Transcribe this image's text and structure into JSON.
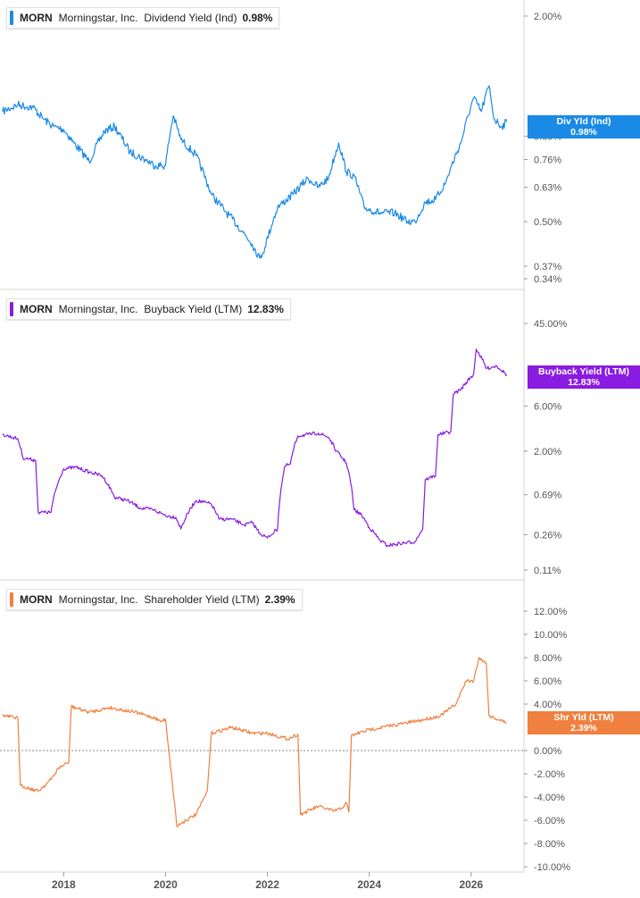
{
  "colors": {
    "dividend": "#1a8ae6",
    "buyback": "#8a1be0",
    "shareholder": "#f08040",
    "axis": "#d4d4d4",
    "text": "#555555"
  },
  "panels": [
    {
      "ticker": "MORN",
      "company": "Morningstar, Inc.",
      "metric": "Dividend Yield (Ind)",
      "value": "0.98%",
      "badge_label": "Div Yld (Ind)",
      "badge_value": "0.98%",
      "y_ticks": [
        "2.00%",
        "0.89%",
        "0.76%",
        "0.63%",
        "0.50%",
        "0.37%",
        "0.34%"
      ],
      "color": "#1a8ae6"
    },
    {
      "ticker": "MORN",
      "company": "Morningstar, Inc.",
      "metric": "Buyback Yield (LTM)",
      "value": "12.83%",
      "badge_label": "Buyback Yield (LTM)",
      "badge_value": "12.83%",
      "y_ticks": [
        "45.00%",
        "6.00%",
        "2.00%",
        "0.69%",
        "0.26%",
        "0.11%"
      ],
      "color": "#8a1be0"
    },
    {
      "ticker": "MORN",
      "company": "Morningstar, Inc.",
      "metric": "Shareholder Yield (LTM)",
      "value": "2.39%",
      "badge_label": "Shr Yld (LTM)",
      "badge_value": "2.39%",
      "y_ticks": [
        "12.00%",
        "10.00%",
        "8.00%",
        "6.00%",
        "4.00%",
        "0.00%",
        "-2.00%",
        "-4.00%",
        "-6.00%",
        "-8.00%",
        "-10.00%"
      ],
      "color": "#f08040"
    }
  ],
  "x_ticks": [
    "2018",
    "2020",
    "2022",
    "2024",
    "2026"
  ],
  "chart_data": [
    {
      "type": "line",
      "title": "MORN Morningstar, Inc. Dividend Yield (Ind) 0.98%",
      "y_scale": "log",
      "ylim": [
        0.34,
        2.0
      ],
      "series": [
        {
          "name": "Dividend Yield (Ind)",
          "x": [
            2016.8,
            2017.1,
            2017.4,
            2017.6,
            2017.8,
            2018.0,
            2018.2,
            2018.5,
            2018.8,
            2019.0,
            2019.3,
            2019.6,
            2019.8,
            2020.0,
            2020.15,
            2020.3,
            2020.6,
            2020.9,
            2021.2,
            2021.5,
            2021.7,
            2021.85,
            2021.95,
            2022.2,
            2022.5,
            2022.8,
            2023.0,
            2023.2,
            2023.4,
            2023.55,
            2023.7,
            2023.9,
            2024.2,
            2024.5,
            2024.75,
            2024.9,
            2025.1,
            2025.3,
            2025.5,
            2025.8,
            2026.05,
            2026.2,
            2026.35,
            2026.45,
            2026.6,
            2026.7
          ],
          "values": [
            1.05,
            1.1,
            1.08,
            1.0,
            0.95,
            0.93,
            0.85,
            0.75,
            0.92,
            0.95,
            0.8,
            0.76,
            0.73,
            0.73,
            1.02,
            0.87,
            0.78,
            0.6,
            0.53,
            0.47,
            0.43,
            0.39,
            0.42,
            0.55,
            0.6,
            0.67,
            0.63,
            0.67,
            0.85,
            0.7,
            0.68,
            0.55,
            0.53,
            0.53,
            0.5,
            0.5,
            0.57,
            0.58,
            0.65,
            0.85,
            1.15,
            1.05,
            1.25,
            1.0,
            0.95,
            0.98
          ]
        }
      ]
    },
    {
      "type": "line",
      "title": "MORN Morningstar, Inc. Buyback Yield (LTM) 12.83%",
      "y_scale": "log",
      "ylim": [
        0.11,
        45.0
      ],
      "series": [
        {
          "name": "Buyback Yield (LTM)",
          "x": [
            2016.8,
            2017.1,
            2017.2,
            2017.45,
            2017.5,
            2017.75,
            2018.0,
            2018.25,
            2018.5,
            2018.75,
            2019.0,
            2019.25,
            2019.5,
            2019.75,
            2019.95,
            2020.05,
            2020.2,
            2020.3,
            2020.6,
            2020.9,
            2021.05,
            2021.3,
            2021.55,
            2021.7,
            2021.85,
            2022.0,
            2022.2,
            2022.35,
            2022.45,
            2022.6,
            2022.8,
            2023.0,
            2023.2,
            2023.35,
            2023.55,
            2023.7,
            2023.85,
            2024.0,
            2024.2,
            2024.35,
            2024.6,
            2024.9,
            2025.05,
            2025.1,
            2025.3,
            2025.35,
            2025.6,
            2025.65,
            2025.8,
            2026.05,
            2026.1,
            2026.3,
            2026.5,
            2026.7
          ],
          "values": [
            3.0,
            2.7,
            1.7,
            1.6,
            0.45,
            0.45,
            1.3,
            1.35,
            1.2,
            1.1,
            0.65,
            0.6,
            0.5,
            0.48,
            0.43,
            0.41,
            0.4,
            0.3,
            0.6,
            0.55,
            0.38,
            0.38,
            0.33,
            0.35,
            0.27,
            0.24,
            0.3,
            1.4,
            1.45,
            2.9,
            3.0,
            3.1,
            2.8,
            2.0,
            1.5,
            0.48,
            0.42,
            0.31,
            0.23,
            0.2,
            0.21,
            0.22,
            0.3,
            1.0,
            1.1,
            3.0,
            3.2,
            8.0,
            9.0,
            13.0,
            24.0,
            15.0,
            16.0,
            12.83
          ]
        }
      ]
    },
    {
      "type": "line",
      "title": "MORN Morningstar, Inc. Shareholder Yield (LTM) 2.39%",
      "y_scale": "linear",
      "ylim": [
        -10.0,
        12.0
      ],
      "series": [
        {
          "name": "Shareholder Yield (LTM)",
          "x": [
            2016.8,
            2017.1,
            2017.15,
            2017.5,
            2017.75,
            2017.9,
            2018.1,
            2018.15,
            2018.5,
            2018.9,
            2019.4,
            2019.8,
            2019.9,
            2020.0,
            2020.2,
            2020.22,
            2020.4,
            2020.6,
            2020.82,
            2020.9,
            2021.3,
            2021.7,
            2022.0,
            2022.4,
            2022.6,
            2022.65,
            2023.0,
            2023.3,
            2023.45,
            2023.55,
            2023.6,
            2023.65,
            2024.0,
            2024.5,
            2025.0,
            2025.4,
            2025.7,
            2025.9,
            2026.05,
            2026.15,
            2026.3,
            2026.35,
            2026.7
          ],
          "values": [
            3.0,
            2.8,
            -3.0,
            -3.5,
            -2.5,
            -1.5,
            -1.0,
            3.8,
            3.3,
            3.7,
            3.3,
            2.8,
            2.5,
            2.7,
            -5.5,
            -6.5,
            -6.0,
            -5.5,
            -3.5,
            1.5,
            2.0,
            1.5,
            1.5,
            1.0,
            1.4,
            -5.5,
            -4.8,
            -5.2,
            -5.0,
            -4.5,
            -5.3,
            1.3,
            1.8,
            2.2,
            2.6,
            3.0,
            4.0,
            6.0,
            6.0,
            8.0,
            7.5,
            3.0,
            2.39
          ]
        }
      ]
    }
  ]
}
